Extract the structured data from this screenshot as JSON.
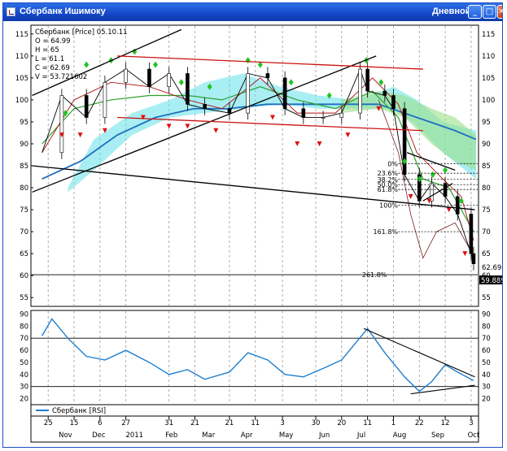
{
  "window": {
    "title": "Сбербанк Ишимоку",
    "mode": "Дневной",
    "buttons": {
      "minimize": "_",
      "maximize": "□",
      "close": "✕"
    }
  },
  "legend": {
    "header": "Сбербанк [Price] 05.10.11",
    "O": "O = 64.99",
    "H": "H = 65",
    "L": "L = 61.1",
    "C": "C = 62.69",
    "V": "V = 53.721602"
  },
  "price_axis": {
    "ticks": [
      "115",
      "110",
      "105",
      "100",
      "95",
      "90",
      "85",
      "80",
      "75",
      "70",
      "65",
      "60",
      "55"
    ],
    "current_price": "62.69",
    "level_label": "59.8892"
  },
  "rsi_axis": {
    "ticks": [
      "90",
      "80",
      "70",
      "60",
      "50",
      "40",
      "30",
      "20"
    ]
  },
  "fib_labels": [
    "0%",
    "23.6%",
    "38.2%",
    "50.0%",
    "61.8%",
    "100%",
    "161.8%",
    "261.8%"
  ],
  "rsi_legend": "Сбербанк [RSI]",
  "date_axis": {
    "days": [
      "25",
      "15",
      "6",
      "27",
      "31",
      "21",
      "21",
      "11",
      "3",
      "30",
      "20",
      "11",
      "1",
      "22",
      "12",
      "3"
    ],
    "months": [
      "Nov",
      "Dec",
      "2011",
      "Feb",
      "Mar",
      "Apr",
      "May",
      "Jun",
      "Jul",
      "Aug",
      "Sep",
      "Oct"
    ]
  },
  "colors": {
    "background": "#ffffff",
    "bull_arrow": "#22c422",
    "bear_arrow": "#e01010",
    "channel_red": "#cc1010",
    "trend_black": "#000000",
    "kumo_cyan": "#63e0e8",
    "kumo_green": "#9be08a",
    "ma_blue": "#1f6fc0",
    "rsi_line": "#1e7fd0"
  },
  "chart_data": [
    {
      "type": "line",
      "name_hint": "Сбербанк [Price]",
      "x": [
        "2010-10-20",
        "2010-11-05",
        "2010-11-25",
        "2010-12-10",
        "2010-12-27",
        "2011-01-15",
        "2011-01-31",
        "2011-02-15",
        "2011-03-01",
        "2011-03-21",
        "2011-04-05",
        "2011-04-21",
        "2011-05-05",
        "2011-05-20",
        "2011-06-05",
        "2011-06-20",
        "2011-07-05",
        "2011-07-11",
        "2011-07-25",
        "2011-08-01",
        "2011-08-10",
        "2011-08-22",
        "2011-09-01",
        "2011-09-12",
        "2011-09-22",
        "2011-10-03",
        "2011-10-05"
      ],
      "y": [
        88,
        101,
        96,
        104,
        107,
        103,
        106,
        99,
        98,
        97,
        106,
        105,
        98,
        96,
        96,
        97,
        107,
        102,
        101,
        98,
        83,
        77,
        81,
        78,
        74,
        65,
        62.69
      ],
      "ylim": [
        53,
        117
      ],
      "levels": [
        {
          "label": "0%",
          "value": 85.5
        },
        {
          "label": "23.6%",
          "value": 83.3
        },
        {
          "label": "38.2%",
          "value": 81.9
        },
        {
          "label": "50.0%",
          "value": 80.7
        },
        {
          "label": "61.8%",
          "value": 79.6
        },
        {
          "label": "100%",
          "value": 76
        },
        {
          "label": "161.8%",
          "value": 70
        },
        {
          "label": "261.8%",
          "value": 60.2
        }
      ]
    },
    {
      "type": "line",
      "name": "Сбербанк [RSI]",
      "x": [
        "2010-10-20",
        "2010-10-28",
        "2010-11-10",
        "2010-11-25",
        "2010-12-10",
        "2010-12-27",
        "2011-01-15",
        "2011-01-31",
        "2011-02-15",
        "2011-03-01",
        "2011-03-21",
        "2011-04-05",
        "2011-04-21",
        "2011-05-05",
        "2011-05-20",
        "2011-06-05",
        "2011-06-20",
        "2011-07-11",
        "2011-07-25",
        "2011-08-10",
        "2011-08-22",
        "2011-09-01",
        "2011-09-12",
        "2011-09-22",
        "2011-10-03",
        "2011-10-05"
      ],
      "y": [
        72,
        86,
        70,
        55,
        52,
        60,
        50,
        40,
        44,
        36,
        42,
        58,
        52,
        40,
        38,
        45,
        52,
        78,
        58,
        38,
        26,
        34,
        48,
        42,
        36,
        35
      ],
      "ylim": [
        15,
        93
      ],
      "levels": [
        70,
        30
      ]
    }
  ]
}
